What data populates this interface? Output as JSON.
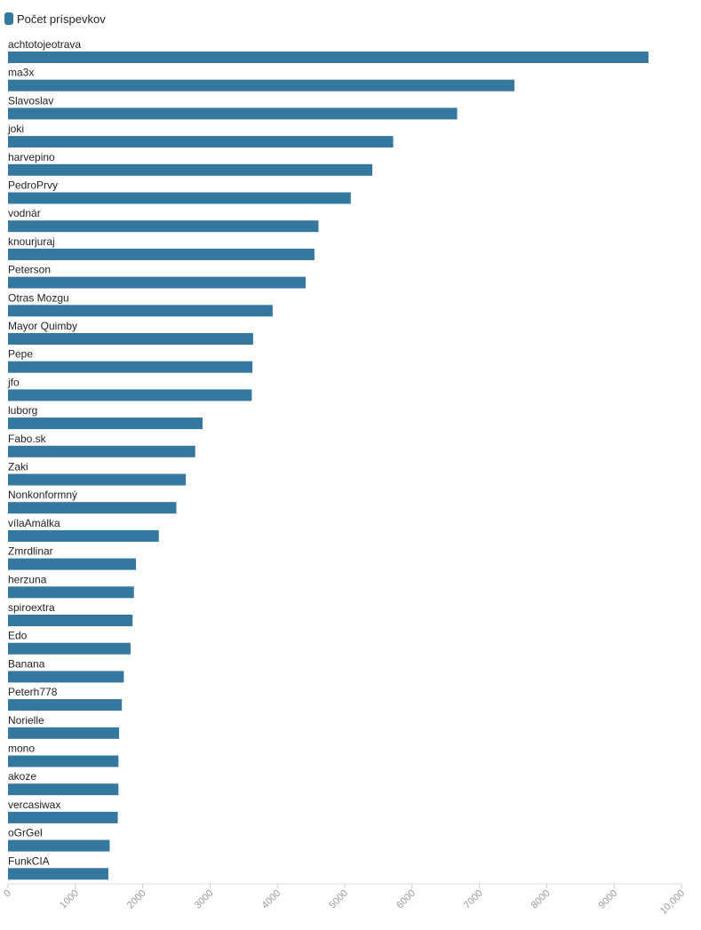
{
  "chart_data": {
    "type": "bar",
    "orientation": "horizontal",
    "legend": "top-left",
    "grid": false,
    "xlim": [
      0,
      10000
    ],
    "xticks": [
      0,
      1000,
      2000,
      3000,
      4000,
      5000,
      6000,
      7000,
      8000,
      9000,
      10000
    ],
    "xtick_labels": [
      "0",
      "1000",
      "2000",
      "3000",
      "4000",
      "5000",
      "6000",
      "7000",
      "8000",
      "9000",
      "10,000"
    ],
    "categories": [
      "achtotojeotrava",
      "ma3x",
      "Slavoslav",
      "joki",
      "harvepino",
      "PedroPrvy",
      "vodnár",
      "knourjuraj",
      "Peterson",
      "Otras Mozgu",
      "Mayor Quimby",
      "Pepe",
      "jfo",
      "luborg",
      "Fabo.sk",
      "Zaki",
      "Nonkonformný",
      "vílaAmálka",
      "Zmrdlinar",
      "herzuna",
      "spiroextra",
      "Edo",
      "Banana",
      "Peterh778",
      "Norielle",
      "mono",
      "akoze",
      "vercasiwax",
      "oGrGel",
      "FunkCIA"
    ],
    "series": [
      {
        "name": "Počet príspevkov",
        "color": "#35789f",
        "values": [
          9510,
          7520,
          6670,
          5720,
          5410,
          5090,
          4610,
          4550,
          4420,
          3930,
          3640,
          3630,
          3620,
          2890,
          2780,
          2640,
          2500,
          2240,
          1900,
          1870,
          1850,
          1820,
          1720,
          1690,
          1650,
          1640,
          1640,
          1630,
          1510,
          1490
        ]
      }
    ]
  }
}
